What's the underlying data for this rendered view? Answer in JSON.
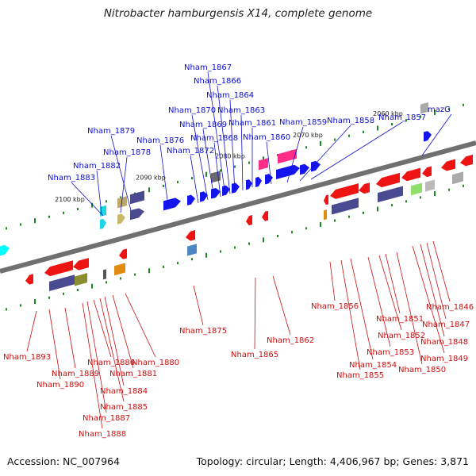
{
  "title": "Nitrobacter hamburgensis X14, complete genome",
  "footer": {
    "accession": "Accession: NC_007964",
    "summary": "Topology: circular; Length: 4,406,967 bp; Genes: 3,871"
  },
  "colors": {
    "forward_label": "#1010cc",
    "reverse_label": "#cc1010",
    "forward_gene": "#1414ee",
    "reverse_gene": "#ee1414",
    "axis": "#707070",
    "tick": "#1a8c1a"
  },
  "scale_labels": [
    "2100 kbp",
    "2090 kbp",
    "2080 kbp",
    "2070 kbp",
    "2060 kbp"
  ],
  "forward_labels": [
    "Nham_1883",
    "Nham_1882",
    "Nham_1878",
    "Nham_1879",
    "Nham_1876",
    "Nham_1872",
    "Nham_1870",
    "Nham_1869",
    "Nham_1868",
    "Nham_1867",
    "Nham_1866",
    "Nham_1864",
    "Nham_1863",
    "Nham_1861",
    "Nham_1860",
    "Nham_1859",
    "Nham_1858",
    "Nham_1857",
    "mazG"
  ],
  "reverse_labels": [
    "Nham_1893",
    "Nham_1890",
    "Nham_1889",
    "Nham_1888",
    "Nham_1887",
    "Nham_1886",
    "Nham_1885",
    "Nham_1884",
    "Nham_1881",
    "Nham_1880",
    "Nham_1875",
    "Nham_1865",
    "Nham_1862",
    "Nham_1856",
    "Nham_1855",
    "Nham_1854",
    "Nham_1853",
    "Nham_1852",
    "Nham_1851",
    "Nham_1850",
    "Nham_1849",
    "Nham_1848",
    "Nham_1847",
    "Nham_1846"
  ]
}
